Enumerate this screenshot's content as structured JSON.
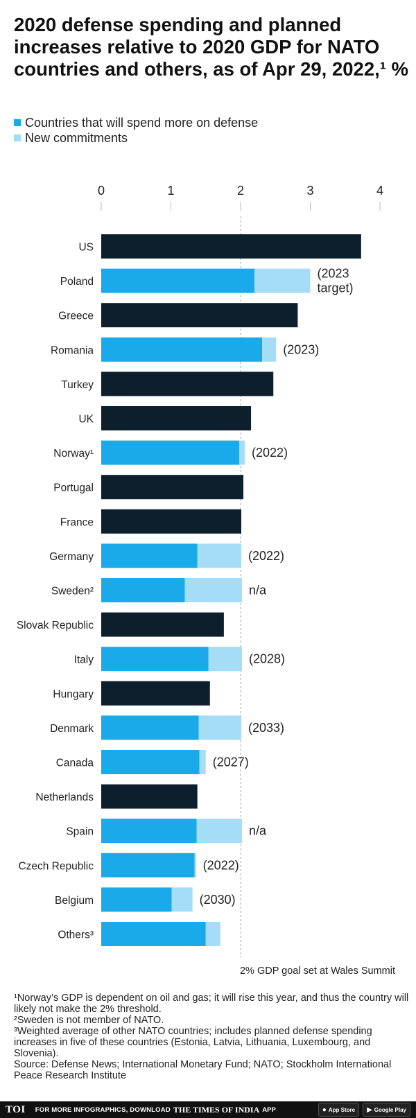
{
  "title": "2020 defense spending and planned increases relative to 2020 GDP for NATO countries and others, as of Apr 29, 2022,¹ %",
  "legend": {
    "base_label": "Countries that will spend more on defense",
    "new_label": "New commitments"
  },
  "colors": {
    "other": "#0d1f2d",
    "base": "#1aa9e9",
    "new": "#a6ddf6"
  },
  "chart_data": {
    "type": "bar",
    "orientation": "horizontal",
    "stacked": true,
    "x_ticks": [
      "0",
      "1",
      "2",
      "3",
      "4"
    ],
    "xlim": [
      0,
      4
    ],
    "reference_line": {
      "x": 2,
      "label": "2% GDP goal set at Wales Summit"
    },
    "categories": [
      "US",
      "Poland",
      "Greece",
      "Romania",
      "Turkey",
      "UK",
      "Norway¹",
      "Portugal",
      "France",
      "Germany",
      "Sweden²",
      "Slovak Republic",
      "Italy",
      "Hungary",
      "Denmark",
      "Canada",
      "Netherlands",
      "Spain",
      "Czech Republic",
      "Belgium",
      "Others³"
    ],
    "series": [
      {
        "name": "Countries that will spend more on defense",
        "key": "base",
        "values": [
          3.73,
          2.2,
          2.82,
          2.31,
          2.47,
          2.15,
          1.98,
          2.04,
          2.01,
          1.38,
          1.2,
          1.76,
          1.54,
          1.56,
          1.4,
          1.41,
          1.38,
          1.37,
          1.34,
          1.01,
          1.5
        ]
      },
      {
        "name": "New commitments",
        "key": "new",
        "values": [
          0,
          0.8,
          0,
          0.2,
          0,
          0,
          0.08,
          0,
          0,
          0.63,
          0.82,
          0,
          0.48,
          0,
          0.61,
          0.09,
          0,
          0.65,
          0.02,
          0.3,
          0.21
        ]
      }
    ],
    "highlight": [
      false,
      true,
      false,
      true,
      false,
      false,
      true,
      false,
      false,
      true,
      true,
      false,
      true,
      false,
      true,
      true,
      false,
      true,
      true,
      true,
      true
    ],
    "annotations": [
      "",
      "(2023 target)",
      "",
      "(2023)",
      "",
      "",
      "(2022)",
      "",
      "",
      "(2022)",
      "n/a",
      "",
      "(2028)",
      "",
      "(2033)",
      "(2027)",
      "",
      "n/a",
      "(2022)",
      "(2030)",
      ""
    ]
  },
  "footnotes": [
    "¹Norway’s GDP is dependent on oil and gas; it will rise this year, and thus the country will likely not make the 2% threshold.",
    "²Sweden is not member of NATO.",
    "³Weighted average of other NATO countries; includes planned defense spending increases in five of these countries (Estonia, Latvia, Lithuania, Luxembourg, and Slovenia).",
    "Source: Defense News; International Monetary Fund; NATO; Stockholm International Peace Research Institute"
  ],
  "footer": {
    "logo": "TOI",
    "promo": "FOR MORE INFOGRAPHICS, DOWNLOAD",
    "brand": "THE TIMES OF INDIA",
    "app": "APP",
    "app_store": "App Store",
    "google_play": "Google Play"
  }
}
